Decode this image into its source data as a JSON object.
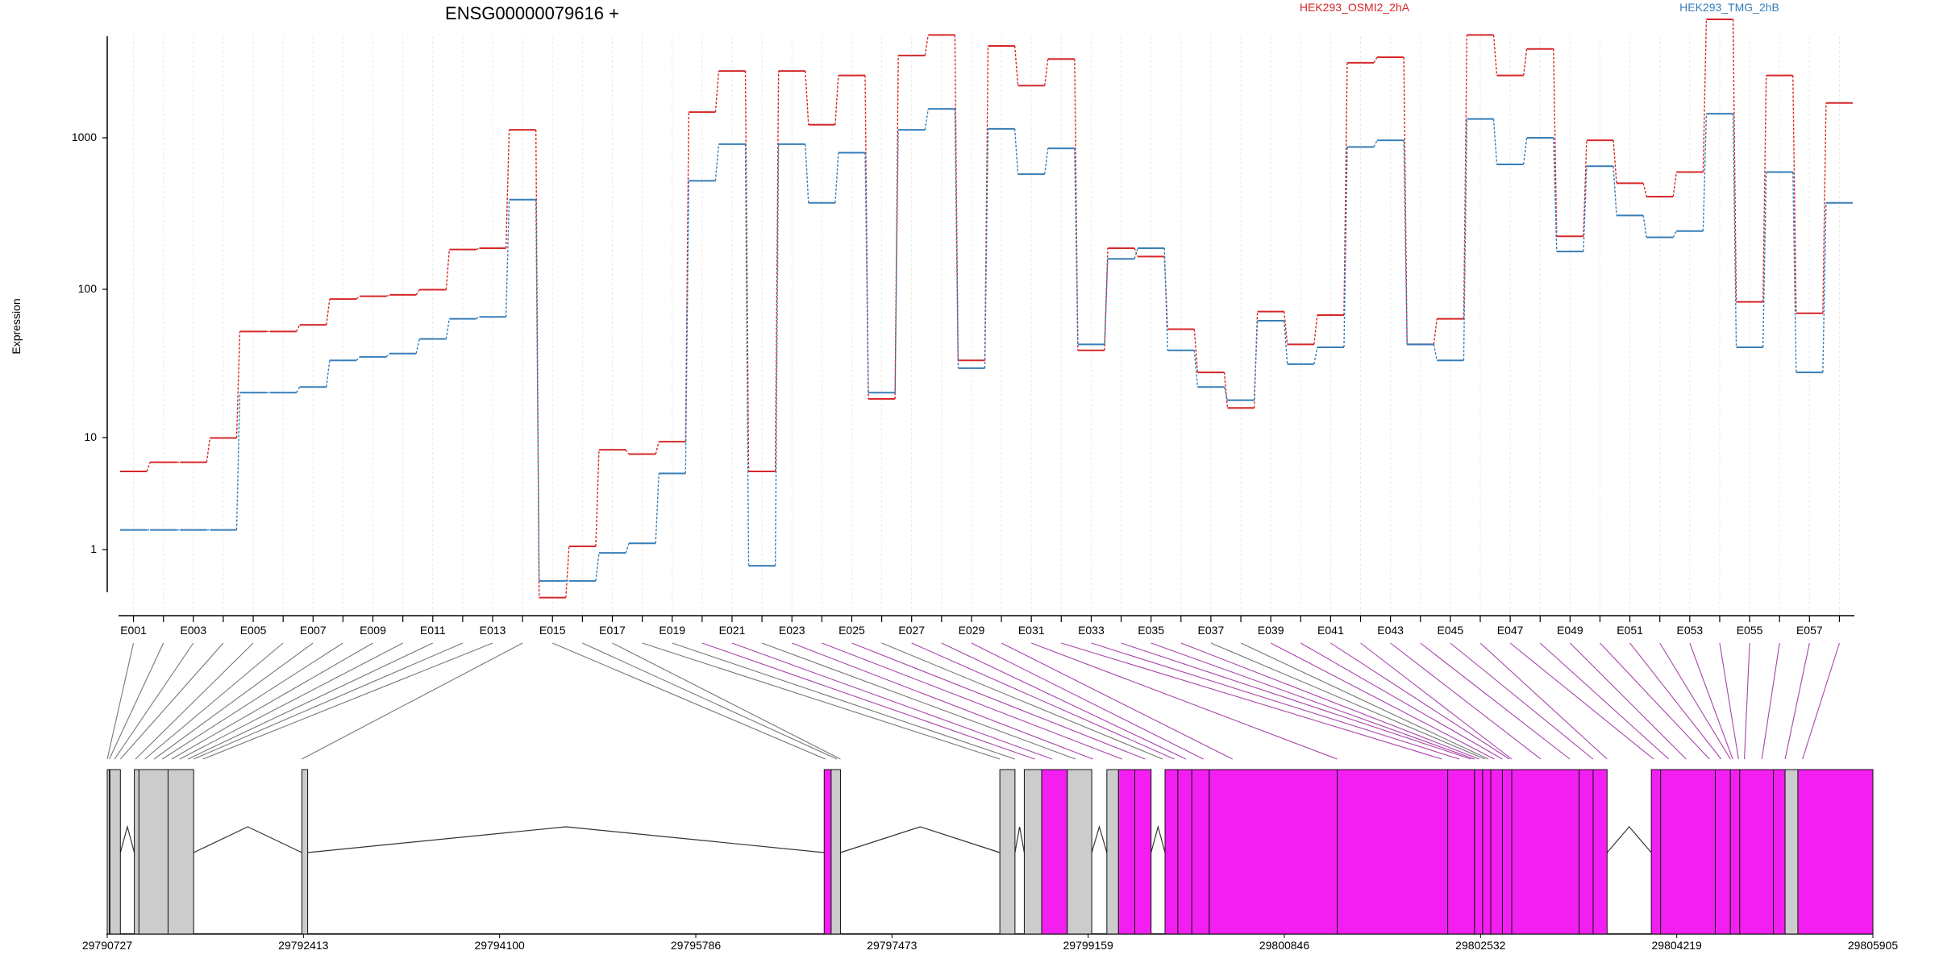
{
  "title": "ENSG00000079616 +",
  "legend": [
    {
      "name": "HEK293_OSMI2_2hA",
      "color": "#d62728"
    },
    {
      "name": "HEK293_TMG_2hB",
      "color": "#377eb8"
    }
  ],
  "ylabel": "Expression",
  "yticks": [
    "1",
    "10",
    "100",
    "1000"
  ],
  "colors": {
    "gene_exon": "#f21ff0",
    "non_gene_exon": "#cccccc",
    "connector_purple": "#aa44aa",
    "connector_gray": "#777777"
  },
  "chart_data": {
    "type": "line",
    "scale": "log",
    "ylim": [
      0.4,
      4500
    ],
    "categories": [
      "E001",
      "E002",
      "E003",
      "E004",
      "E005",
      "E006",
      "E007",
      "E008",
      "E009",
      "E010",
      "E011",
      "E012",
      "E013",
      "E014",
      "E015",
      "E016",
      "E017",
      "E018",
      "E019",
      "E020",
      "E021",
      "E022",
      "E023",
      "E024",
      "E025",
      "E026",
      "E027",
      "E028",
      "E029",
      "E030",
      "E031",
      "E032",
      "E033",
      "E034",
      "E035",
      "E036",
      "E037",
      "E038",
      "E039",
      "E040",
      "E041",
      "E042",
      "E043",
      "E044",
      "E045",
      "E046",
      "E047",
      "E048",
      "E049",
      "E050",
      "E051",
      "E052",
      "E053",
      "E054",
      "E055",
      "E056",
      "E057",
      "E058"
    ],
    "tick_labels": [
      "E001",
      "E003",
      "E005",
      "E007",
      "E009",
      "E011",
      "E013",
      "E015",
      "E017",
      "E019",
      "E021",
      "E023",
      "E025",
      "E027",
      "E029",
      "E031",
      "E033",
      "E035",
      "E037",
      "E039",
      "E041",
      "E043",
      "E045",
      "E047",
      "E049",
      "E051",
      "E053",
      "E055",
      "E057"
    ],
    "series": [
      {
        "name": "HEK293_OSMI2_2hA",
        "color": "#d62728",
        "values": [
          3.3,
          3.8,
          3.8,
          5.5,
          28,
          28,
          31,
          46,
          48,
          49,
          53,
          98,
          100,
          610,
          0.48,
          1.05,
          4.6,
          4.3,
          5.2,
          800,
          1500,
          3.3,
          1500,
          660,
          1400,
          10,
          1900,
          2600,
          18,
          2200,
          1200,
          1800,
          21,
          100,
          88,
          29,
          15,
          8.7,
          38,
          23,
          36,
          1700,
          1850,
          23,
          34,
          2600,
          1400,
          2100,
          120,
          520,
          270,
          220,
          320,
          3300,
          44,
          1400,
          37,
          920
        ]
      },
      {
        "name": "HEK293_TMG_2hB",
        "color": "#377eb8",
        "values": [
          1.35,
          1.35,
          1.35,
          1.35,
          11,
          11,
          12,
          18,
          19,
          20,
          25,
          34,
          35,
          210,
          0.62,
          0.62,
          0.95,
          1.1,
          3.2,
          280,
          490,
          0.78,
          490,
          200,
          430,
          11,
          610,
          840,
          16,
          620,
          310,
          460,
          23,
          85,
          100,
          21,
          12,
          9.8,
          33,
          17,
          22,
          470,
          520,
          23,
          18,
          720,
          360,
          540,
          95,
          350,
          165,
          118,
          130,
          780,
          22,
          320,
          15,
          200
        ]
      }
    ],
    "gene_model": {
      "start": 29790727,
      "end": 29805905,
      "coordinate_ticks": [
        "29790727",
        "29792413",
        "29794100",
        "29795786",
        "29797473",
        "29799159",
        "29800846",
        "29802532",
        "29804219",
        "29805905"
      ],
      "exons": [
        [
          29790727,
          29790745,
          "gray"
        ],
        [
          29790750,
          29790840,
          "gray"
        ],
        [
          29790960,
          29791000,
          "gray"
        ],
        [
          29791000,
          29791250,
          "gray"
        ],
        [
          29791250,
          29791470,
          "gray"
        ],
        [
          29792400,
          29792450,
          "gray"
        ],
        [
          29796890,
          29796950,
          "pink"
        ],
        [
          29796950,
          29797030,
          "gray"
        ],
        [
          29798400,
          29798530,
          "gray"
        ],
        [
          29798610,
          29798760,
          "gray"
        ],
        [
          29798760,
          29798980,
          "pink"
        ],
        [
          29798980,
          29799190,
          "gray"
        ],
        [
          29799320,
          29799420,
          "gray"
        ],
        [
          29799420,
          29799560,
          "pink"
        ],
        [
          29799560,
          29799700,
          "pink"
        ],
        [
          29799820,
          29799930,
          "pink"
        ],
        [
          29799930,
          29800050,
          "pink"
        ],
        [
          29800050,
          29800200,
          "pink"
        ],
        [
          29800200,
          29801300,
          "pink"
        ],
        [
          29801300,
          29802250,
          "pink"
        ],
        [
          29802250,
          29802480,
          "pink"
        ],
        [
          29802480,
          29802550,
          "pink"
        ],
        [
          29802550,
          29802620,
          "pink"
        ],
        [
          29802620,
          29802720,
          "pink"
        ],
        [
          29802720,
          29802800,
          "pink"
        ],
        [
          29802800,
          29803380,
          "pink"
        ],
        [
          29803380,
          29803500,
          "pink"
        ],
        [
          29803500,
          29803620,
          "pink"
        ],
        [
          29804000,
          29804080,
          "pink"
        ],
        [
          29804080,
          29804550,
          "pink"
        ],
        [
          29804550,
          29804680,
          "pink"
        ],
        [
          29804680,
          29804760,
          "pink"
        ],
        [
          29804760,
          29805050,
          "pink"
        ],
        [
          29805050,
          29805150,
          "pink"
        ],
        [
          29805150,
          29805260,
          "gray"
        ],
        [
          29805260,
          29805905,
          "pink"
        ]
      ],
      "introns": [
        [
          29790840,
          29790960
        ],
        [
          29791470,
          29792400
        ],
        [
          29792450,
          29796890
        ],
        [
          29797030,
          29798400
        ],
        [
          29798530,
          29798610
        ],
        [
          29799190,
          29799320
        ],
        [
          29799700,
          29799820
        ],
        [
          29803620,
          29804000
        ]
      ],
      "exon_bin_positions": [
        29790727,
        29790745,
        29790790,
        29790840,
        29790970,
        29791050,
        29791130,
        29791200,
        29791280,
        29791350,
        29791420,
        29791470,
        29791550,
        29792400,
        29796900,
        29797000,
        29797030,
        29798400,
        29798530,
        29798700,
        29798850,
        29799050,
        29799200,
        29799450,
        29799650,
        29799800,
        29799900,
        29800000,
        29800150,
        29800400,
        29801300,
        29802200,
        29802350,
        29802450,
        29802480,
        29802520,
        29802570,
        29802600,
        29802650,
        29802720,
        29802780,
        29802800,
        29803050,
        29803300,
        29803500,
        29803620,
        29804020,
        29804150,
        29804300,
        29804500,
        29804600,
        29804680,
        29804700,
        29804750,
        29804800,
        29804950,
        29805150,
        29805300
      ]
    }
  }
}
